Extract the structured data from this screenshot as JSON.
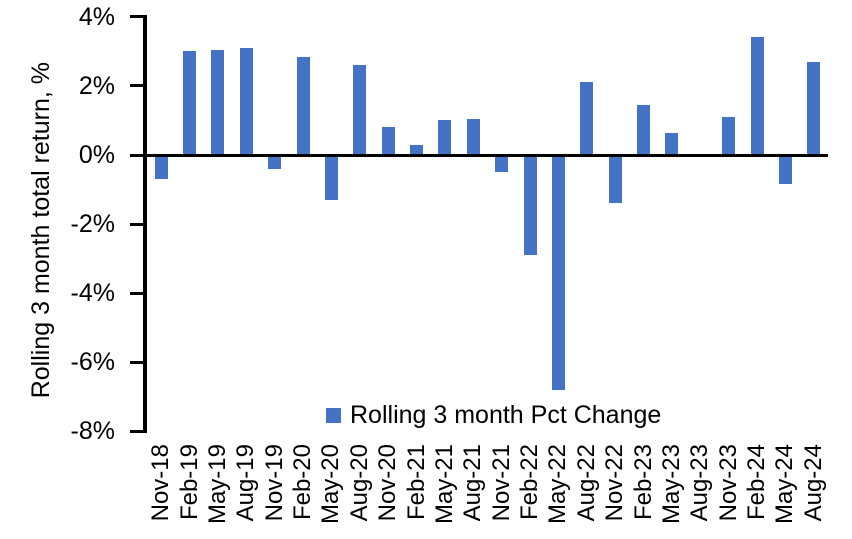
{
  "chart_data": {
    "type": "bar",
    "title": "",
    "ylabel": "Rolling 3 month total return, %",
    "xlabel": "",
    "legend": "Rolling 3 month Pct Change",
    "legend_position": "bottom-center-inside",
    "grid": false,
    "categories": [
      "Nov-18",
      "Feb-19",
      "May-19",
      "Aug-19",
      "Nov-19",
      "Feb-20",
      "May-20",
      "Aug-20",
      "Nov-20",
      "Feb-21",
      "May-21",
      "Aug-21",
      "Nov-21",
      "Feb-22",
      "May-22",
      "Aug-22",
      "Nov-22",
      "Feb-23",
      "May-23",
      "Aug-23",
      "Nov-23",
      "Feb-24",
      "May-24",
      "Aug-24"
    ],
    "values": [
      -0.7,
      3.0,
      3.05,
      3.1,
      -0.4,
      2.85,
      -1.3,
      2.6,
      0.8,
      0.3,
      1.0,
      1.05,
      -0.5,
      -2.9,
      -6.8,
      2.1,
      -1.4,
      1.45,
      0.65,
      0.0,
      1.1,
      3.4,
      -0.85,
      2.7
    ],
    "ylim": [
      -8,
      4
    ],
    "ytick_values": [
      4,
      2,
      0,
      -2,
      -4,
      -6,
      -8
    ],
    "ytick_labels": [
      "4%",
      "2%",
      "0%",
      "-2%",
      "-4%",
      "-6%",
      "-8%"
    ],
    "colors": {
      "bar": "#4472C4",
      "axis": "#000000",
      "text": "#000000",
      "background": "#FFFFFF"
    }
  }
}
